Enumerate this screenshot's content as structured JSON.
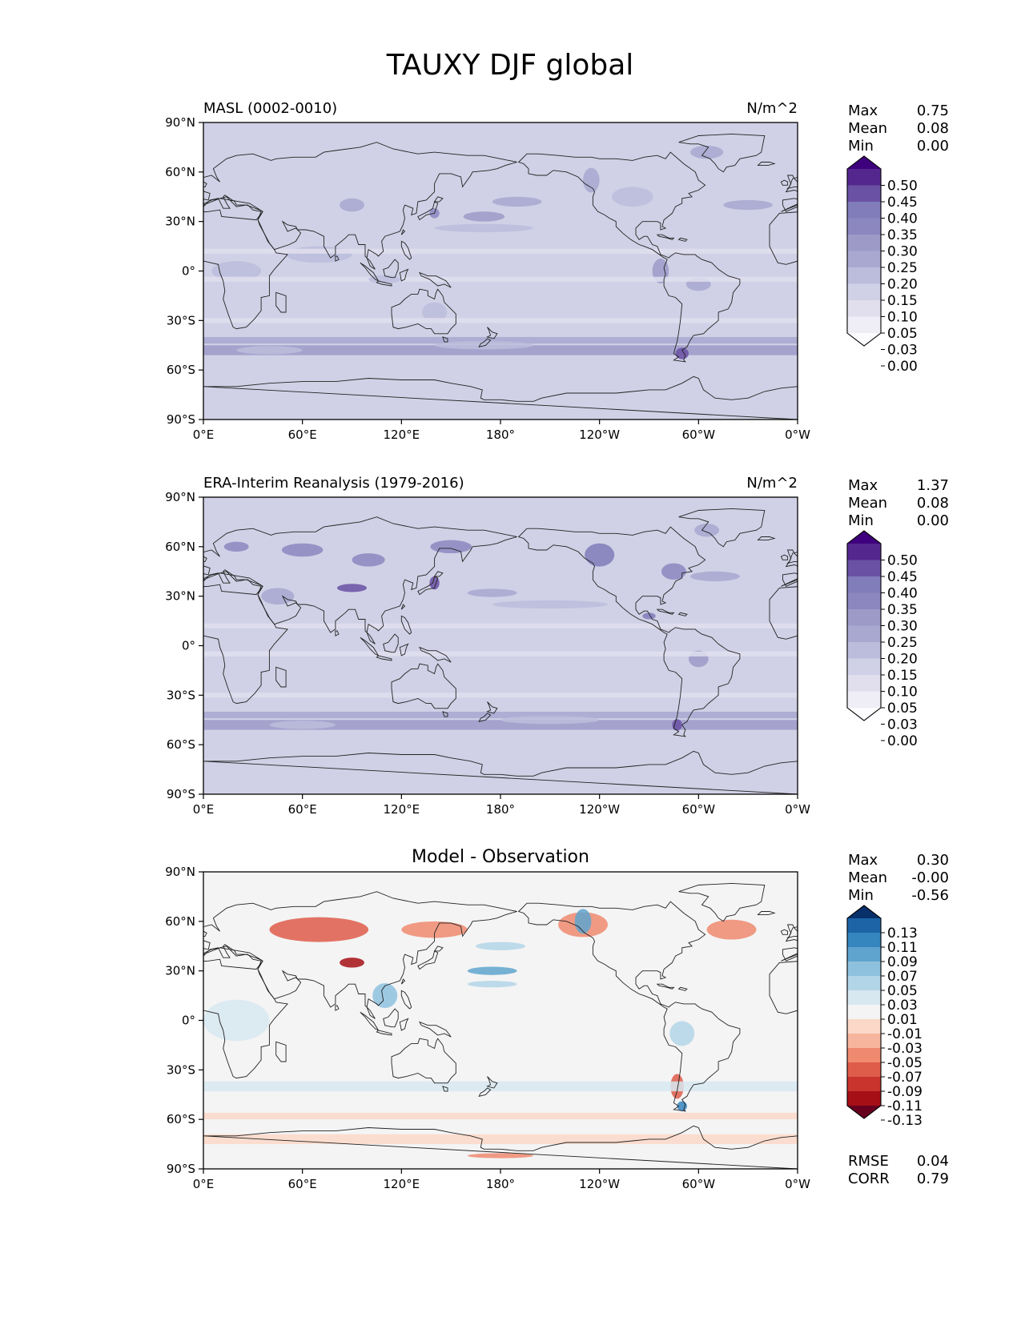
{
  "title": "TAUXY DJF global",
  "colors": {
    "purples": [
      "#fcfbfd",
      "#efedf5",
      "#e1dfee",
      "#d0d1e6",
      "#bcbddc",
      "#a8a8d0",
      "#9e9ac8",
      "#8d87bf",
      "#807dba",
      "#6a51a3",
      "#54278f",
      "#3f007d"
    ],
    "diverging": [
      "#67001f",
      "#a50f15",
      "#c9342d",
      "#de5c4a",
      "#ef8a70",
      "#f7b59d",
      "#fbd8c8",
      "#f4f4f4",
      "#d7e8f1",
      "#b3d5e8",
      "#8ec1de",
      "#5fa4ce",
      "#3585bf",
      "#1c64a6",
      "#08306b"
    ],
    "land": "#ffffff",
    "coast": "#222222"
  },
  "panels": [
    {
      "id": "model",
      "title_left": "MASL (0002-0010)",
      "title_right": "N/m^2",
      "title_center": "",
      "stats": [
        {
          "label": "Max",
          "value": "0.75"
        },
        {
          "label": "Mean",
          "value": "0.08"
        },
        {
          "label": "Min",
          "value": "0.00"
        }
      ],
      "colorbar": {
        "palette": "purples",
        "ticks": [
          "0.50",
          "0.45",
          "0.40",
          "0.35",
          "0.30",
          "0.25",
          "0.20",
          "0.15",
          "0.10",
          "0.05",
          "0.03",
          "0.00"
        ]
      }
    },
    {
      "id": "obs",
      "title_left": "ERA-Interim Reanalysis (1979-2016)",
      "title_right": "N/m^2",
      "title_center": "",
      "stats": [
        {
          "label": "Max",
          "value": "1.37"
        },
        {
          "label": "Mean",
          "value": "0.08"
        },
        {
          "label": "Min",
          "value": "0.00"
        }
      ],
      "colorbar": {
        "palette": "purples",
        "ticks": [
          "0.50",
          "0.45",
          "0.40",
          "0.35",
          "0.30",
          "0.25",
          "0.20",
          "0.15",
          "0.10",
          "0.05",
          "0.03",
          "0.00"
        ]
      }
    },
    {
      "id": "diff",
      "title_left": "",
      "title_right": "",
      "title_center": "Model - Observation",
      "stats": [
        {
          "label": "Max",
          "value": "0.30"
        },
        {
          "label": "Mean",
          "value": "-0.00"
        },
        {
          "label": "Min",
          "value": "-0.56"
        }
      ],
      "bottom_stats": [
        {
          "label": "RMSE",
          "value": "0.04"
        },
        {
          "label": "CORR",
          "value": "0.79"
        }
      ],
      "colorbar": {
        "palette": "diverging",
        "ticks": [
          "0.13",
          "0.11",
          "0.09",
          "0.07",
          "0.05",
          "0.03",
          "0.01",
          "-0.01",
          "-0.03",
          "-0.05",
          "-0.07",
          "-0.09",
          "-0.11",
          "-0.13"
        ]
      }
    }
  ],
  "chart_data": {
    "type": "heatmap",
    "title": "TAUXY DJF global",
    "variable": "TAUXY",
    "season": "DJF",
    "units": "N/m^2",
    "xlabels": [
      "0°E",
      "60°E",
      "120°E",
      "180°",
      "120°W",
      "60°W",
      "0°W"
    ],
    "ylabels": [
      "90°N",
      "60°N",
      "30°N",
      "0°",
      "30°S",
      "60°S",
      "90°S"
    ],
    "xlim": [
      0,
      360
    ],
    "ylim": [
      -90,
      90
    ],
    "panels": [
      {
        "name": "MASL (0002-0010)",
        "max": 0.75,
        "mean": 0.08,
        "min": 0.0,
        "levels": [
          0.0,
          0.03,
          0.05,
          0.1,
          0.15,
          0.2,
          0.25,
          0.3,
          0.35,
          0.4,
          0.45,
          0.5
        ]
      },
      {
        "name": "ERA-Interim Reanalysis (1979-2016)",
        "max": 1.37,
        "mean": 0.08,
        "min": 0.0,
        "levels": [
          0.0,
          0.03,
          0.05,
          0.1,
          0.15,
          0.2,
          0.25,
          0.3,
          0.35,
          0.4,
          0.45,
          0.5
        ]
      },
      {
        "name": "Model - Observation",
        "max": 0.3,
        "mean": -0.0,
        "min": -0.56,
        "rmse": 0.04,
        "corr": 0.79,
        "levels": [
          -0.13,
          -0.11,
          -0.09,
          -0.07,
          -0.05,
          -0.03,
          -0.01,
          0.01,
          0.03,
          0.05,
          0.07,
          0.09,
          0.11,
          0.13
        ]
      }
    ]
  }
}
